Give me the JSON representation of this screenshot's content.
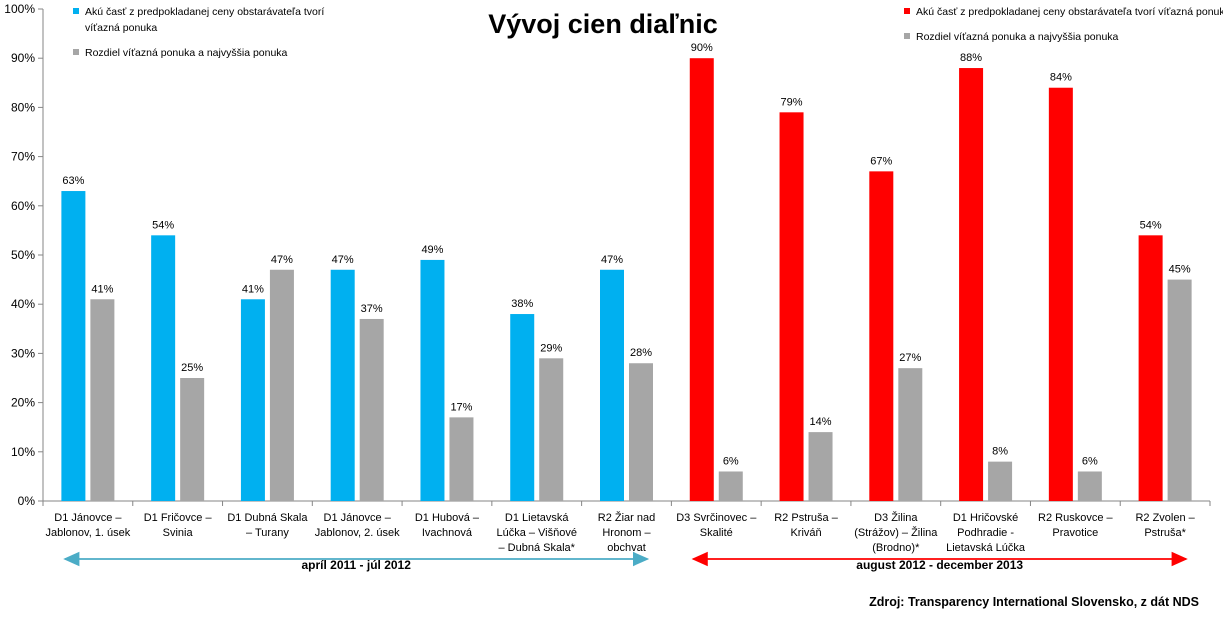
{
  "chart_data": {
    "type": "bar",
    "title": "Vývoj cien diaľnic",
    "xlabel": "",
    "ylabel": "",
    "ylim": [
      0,
      100
    ],
    "yticks": [
      "0%",
      "10%",
      "20%",
      "30%",
      "40%",
      "50%",
      "60%",
      "70%",
      "80%",
      "90%",
      "100%"
    ],
    "grid": false,
    "categories": [
      [
        "D1 Jánovce –",
        "Jablonov, 1. úsek"
      ],
      [
        "D1 Fričovce –",
        "Svinia"
      ],
      [
        "D1 Dubná Skala",
        "– Turany"
      ],
      [
        "D1 Jánovce –",
        "Jablonov, 2. úsek"
      ],
      [
        "D1 Hubová –",
        "Ivachnová"
      ],
      [
        "D1 Lietavská",
        "Lúčka – Višňové",
        "– Dubná Skala*"
      ],
      [
        "R2 Žiar nad",
        "Hronom –",
        "obchvat"
      ],
      [
        "D3 Svrčinovec –",
        "Skalité"
      ],
      [
        "R2 Pstruša –",
        "Kriváň"
      ],
      [
        "D3 Žilina",
        "(Strážov) – Žilina",
        "(Brodno)*"
      ],
      [
        "D1 Hričovské",
        "Podhradie -",
        "Lietavská Lúčka"
      ],
      [
        "R2 Ruskovce –",
        "Pravotice"
      ],
      [
        "R2 Zvolen –",
        "Pstruša*"
      ]
    ],
    "series": [
      {
        "name": "Akú časť z predpokladanej ceny obstarávateľa tvorí víťazná ponuka",
        "values": [
          63,
          54,
          41,
          47,
          49,
          38,
          47,
          90,
          79,
          67,
          88,
          84,
          54
        ],
        "labels": [
          "63%",
          "54%",
          "41%",
          "47%",
          "49%",
          "38%",
          "47%",
          "90%",
          "79%",
          "67%",
          "88%",
          "84%",
          "54%"
        ],
        "colors": [
          "#00b0f0",
          "#00b0f0",
          "#00b0f0",
          "#00b0f0",
          "#00b0f0",
          "#00b0f0",
          "#00b0f0",
          "#ff0000",
          "#ff0000",
          "#ff0000",
          "#ff0000",
          "#ff0000",
          "#ff0000"
        ]
      },
      {
        "name": "Rozdiel víťazná ponuka a najvyššia ponuka",
        "values": [
          41,
          25,
          47,
          37,
          17,
          29,
          28,
          6,
          14,
          27,
          8,
          6,
          45
        ],
        "labels": [
          "41%",
          "25%",
          "47%",
          "37%",
          "17%",
          "29%",
          "28%",
          "6%",
          "14%",
          "27%",
          "8%",
          "6%",
          "45%"
        ],
        "colors": [
          "#a6a6a6"
        ]
      }
    ],
    "legends": [
      {
        "placement": "top-left",
        "items": [
          {
            "lines": [
              "Akú časť z predpokladanej ceny obstarávateľa tvorí",
              "víťazná ponuka"
            ],
            "color": "#00b0f0"
          },
          {
            "lines": [
              "Rozdiel víťazná ponuka a najvyššia ponuka"
            ],
            "color": "#a6a6a6"
          }
        ]
      },
      {
        "placement": "top-right",
        "items": [
          {
            "lines": [
              "Akú časť z predpokladanej ceny obstarávateľa tvorí víťazná ponuka"
            ],
            "color": "#ff0000"
          },
          {
            "lines": [
              "Rozdiel víťazná ponuka a najvyššia ponuka"
            ],
            "color": "#a6a6a6"
          }
        ]
      }
    ],
    "periods": [
      {
        "label": "apríl 2011 - júl 2012",
        "from": 0,
        "to": 6,
        "color": "#4bacc6"
      },
      {
        "label": "august 2012 - december 2013",
        "from": 7,
        "to": 12,
        "color": "#ff0000"
      }
    ],
    "source": "Zdroj: Transparency International Slovensko, z dát NDS"
  }
}
